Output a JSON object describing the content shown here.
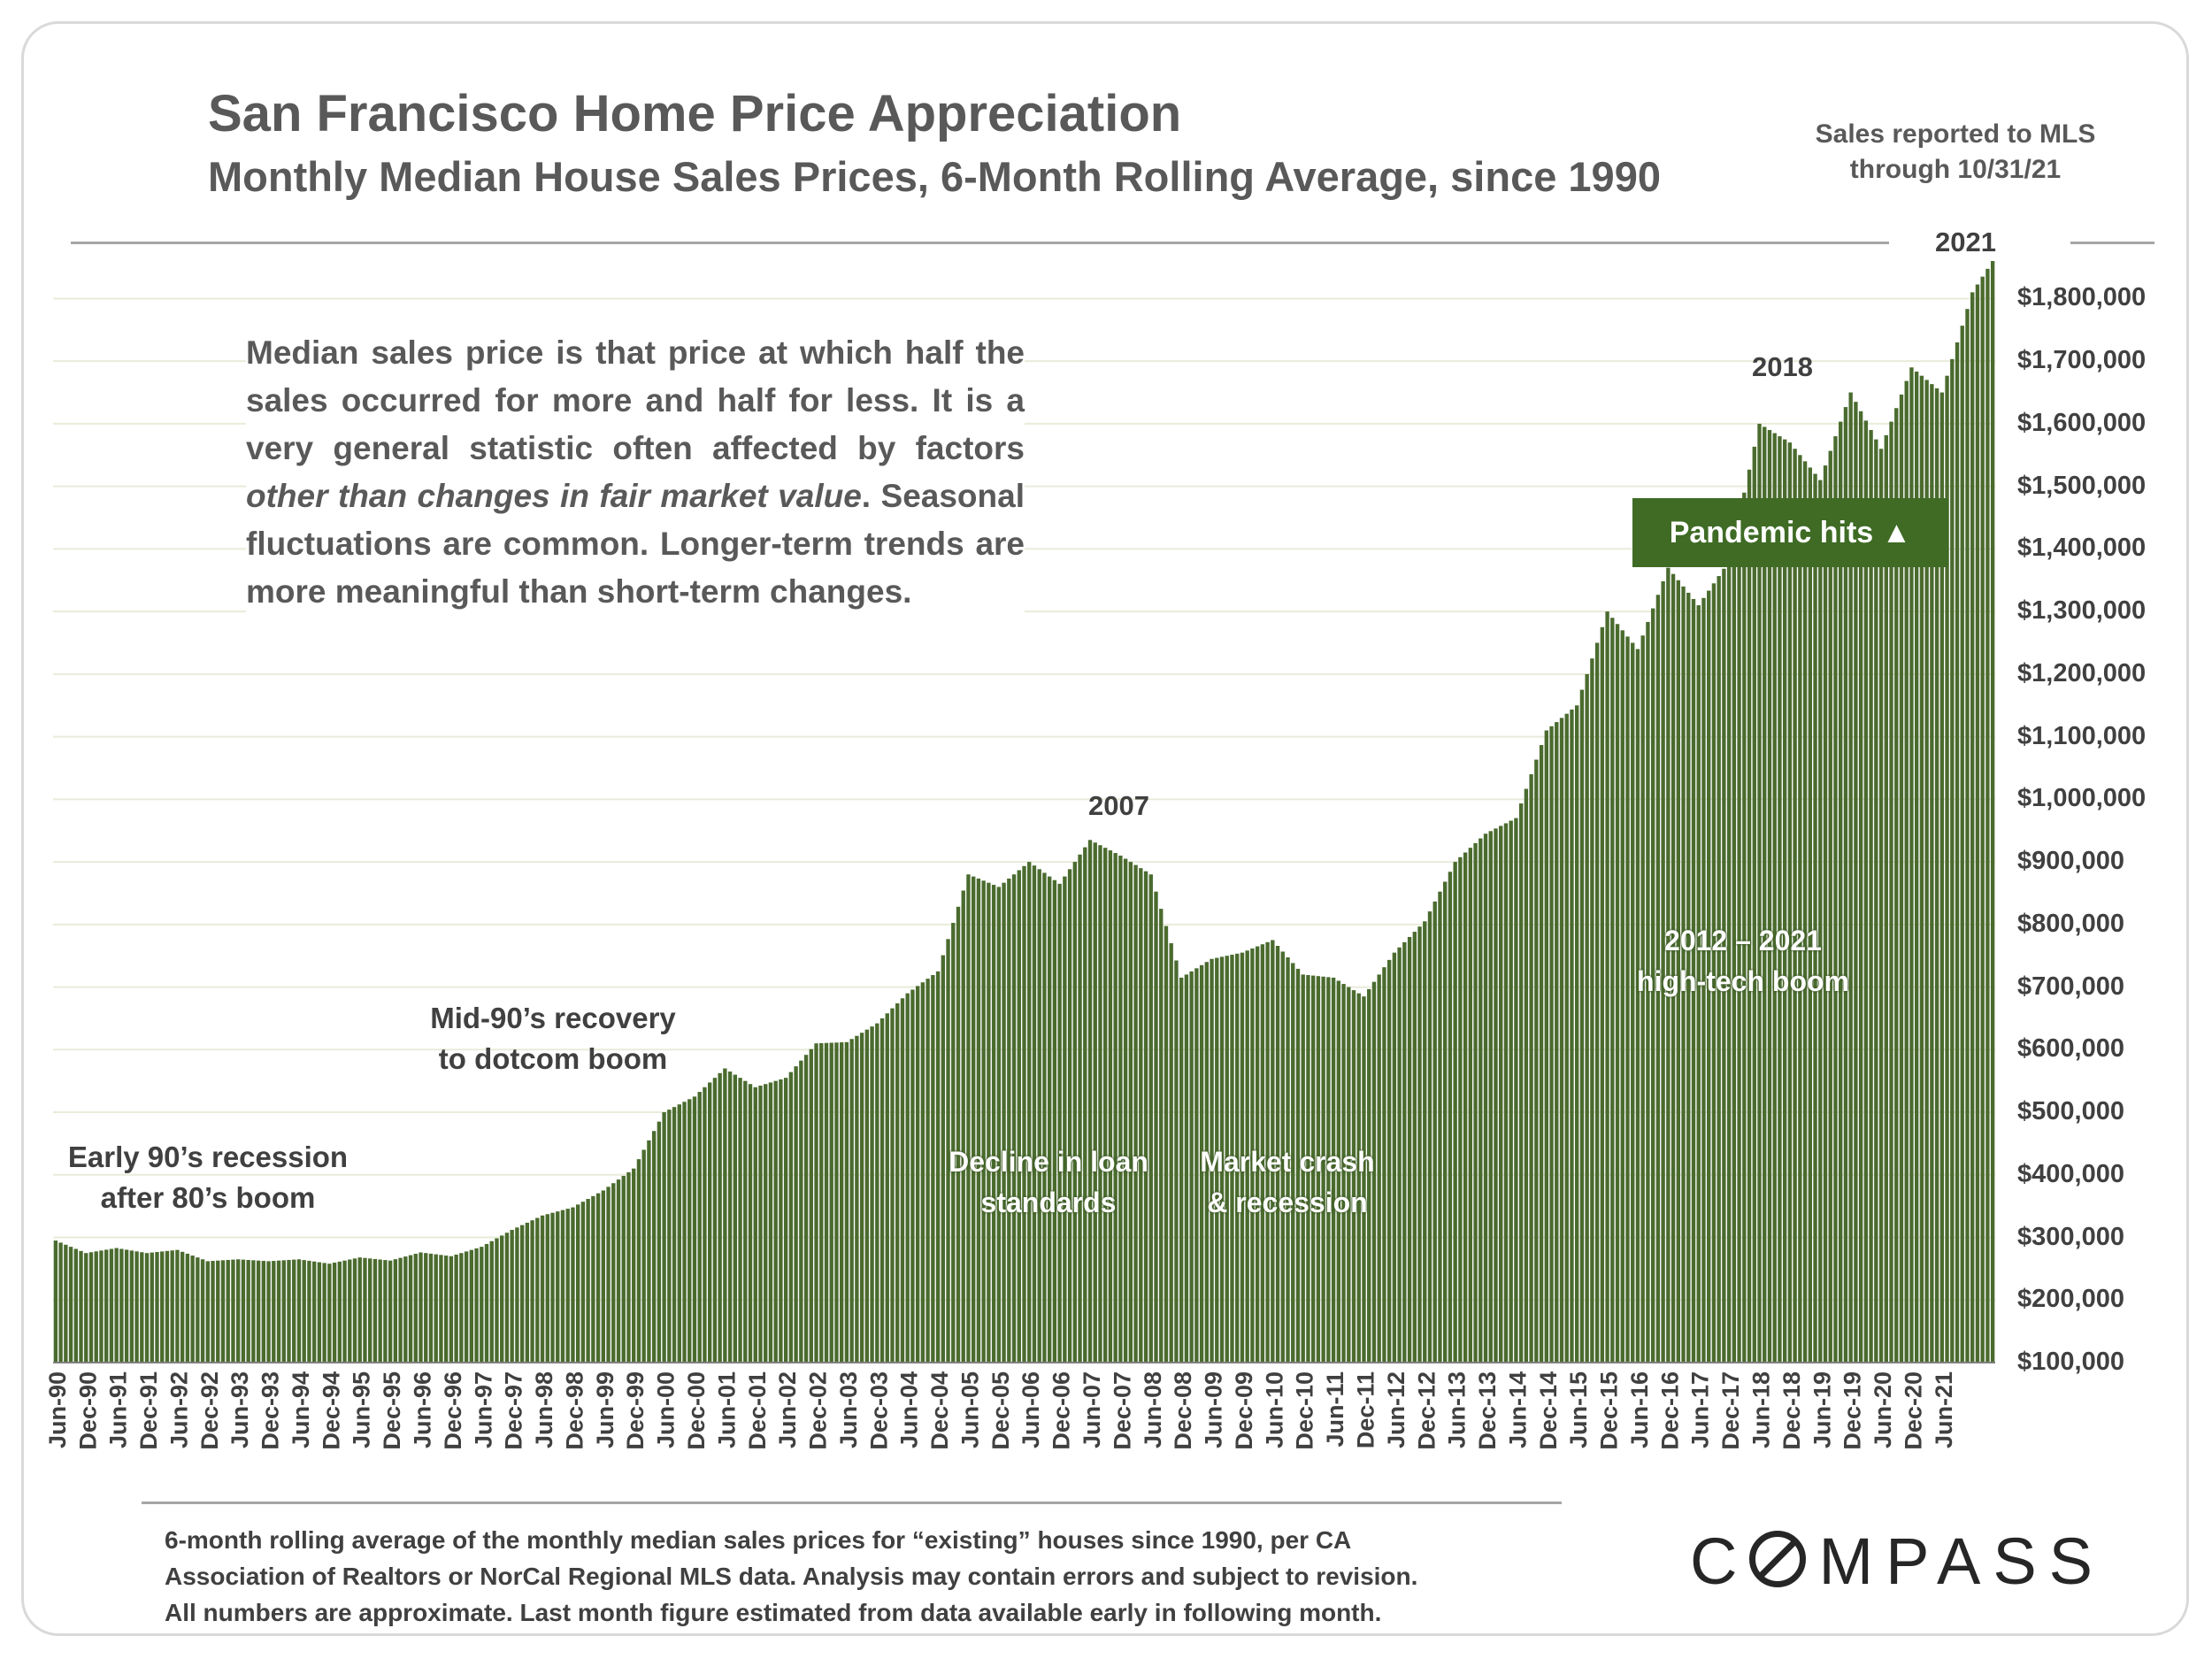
{
  "header": {
    "title": "San Francisco Home Price Appreciation",
    "subtitle": "Monthly Median House Sales Prices, 6-Month Rolling Average, since 1990",
    "source_line1": "Sales reported to MLS",
    "source_line2": "through 10/31/21"
  },
  "note": {
    "part1": "Median sales price is that price at which half the sales occurred for more and half for less. It is a very general statistic often affected by factors",
    "italic1": "other than changes in fair market value",
    "part2": ". Seasonal fluctuations are common. Longer-term trends are more meaningful than short-term changes."
  },
  "annotations": {
    "early90s_line1": "Early 90’s recession",
    "early90s_line2": "after 80’s boom",
    "mid90s_line1": "Mid-90’s recovery",
    "mid90s_line2": "to dotcom boom",
    "decline_line1": "Decline in loan",
    "decline_line2": "standards",
    "crash_line1": "Market crash",
    "crash_line2": "& recession",
    "boom_line1": "2012 – 2021",
    "boom_line2": "high-tech boom",
    "year_2007": "2007",
    "year_2018": "2018",
    "year_2021": "2021",
    "pandemic": "Pandemic hits ▲"
  },
  "footnote": {
    "line1": "6-month rolling average of the monthly median sales prices for “existing” houses since 1990, per CA",
    "line2": "Association of Realtors or NorCal Regional MLS data.  Analysis may contain errors and subject to revision.",
    "line3": "All numbers are approximate. Last month figure estimated from data available early in following month."
  },
  "logo": {
    "text_a": "C",
    "text_b": "MPASS"
  },
  "colors": {
    "bar": "#4a6b2e",
    "bar_edge": "#3d5a26",
    "grid": "#e8ecd9",
    "pandemic_bg": "#3f6b25"
  },
  "chart_data": {
    "type": "bar",
    "title": "San Francisco Home Price Appreciation",
    "subtitle": "Monthly Median House Sales Prices, 6-Month Rolling Average, since 1990",
    "start_month": "Jun-90",
    "end_month": "Oct-21",
    "ylim": [
      100000,
      1860000
    ],
    "y_ticks": [
      100000,
      200000,
      300000,
      400000,
      500000,
      600000,
      700000,
      800000,
      900000,
      1000000,
      1100000,
      1200000,
      1300000,
      1400000,
      1500000,
      1600000,
      1700000,
      1800000
    ],
    "y_tick_labels": [
      "$100,000",
      "$200,000",
      "$300,000",
      "$400,000",
      "$500,000",
      "$600,000",
      "$700,000",
      "$800,000",
      "$900,000",
      "$1,000,000",
      "$1,100,000",
      "$1,200,000",
      "$1,300,000",
      "$1,400,000",
      "$1,500,000",
      "$1,600,000",
      "$1,700,000",
      "$1,800,000"
    ],
    "x_tick_labels": [
      "Jun-90",
      "Dec-90",
      "Jun-91",
      "Dec-91",
      "Jun-92",
      "Dec-92",
      "Jun-93",
      "Dec-93",
      "Jun-94",
      "Dec-94",
      "Jun-95",
      "Dec-95",
      "Jun-96",
      "Dec-96",
      "Jun-97",
      "Dec-97",
      "Jun-98",
      "Dec-98",
      "Jun-99",
      "Dec-99",
      "Jun-00",
      "Dec-00",
      "Jun-01",
      "Dec-01",
      "Jun-02",
      "Dec-02",
      "Jun-03",
      "Dec-03",
      "Jun-04",
      "Dec-04",
      "Jun-05",
      "Dec-05",
      "Jun-06",
      "Dec-06",
      "Jun-07",
      "Dec-07",
      "Jun-08",
      "Dec-08",
      "Jun-09",
      "Dec-09",
      "Jun-10",
      "Dec-10",
      "Jun-11",
      "Dec-11",
      "Jun-12",
      "Dec-12",
      "Jun-13",
      "Dec-13",
      "Jun-14",
      "Dec-14",
      "Jun-15",
      "Dec-15",
      "Jun-16",
      "Dec-16",
      "Jun-17",
      "Dec-17",
      "Jun-18",
      "Dec-18",
      "Jun-19",
      "Dec-19",
      "Jun-20",
      "Dec-20",
      "Jun-21"
    ],
    "anchor_values_semiannual": [
      295000,
      275000,
      283000,
      275000,
      280000,
      262000,
      265000,
      262000,
      265000,
      258000,
      268000,
      263000,
      276000,
      270000,
      285000,
      312000,
      335000,
      348000,
      375000,
      410000,
      500000,
      525000,
      570000,
      540000,
      555000,
      610000,
      612000,
      642000,
      690000,
      725000,
      880000,
      860000,
      900000,
      865000,
      935000,
      910000,
      880000,
      715000,
      745000,
      755000,
      775000,
      720000,
      715000,
      685000,
      755000,
      805000,
      900000,
      945000,
      970000,
      1110000,
      1150000,
      1300000,
      1240000,
      1370000,
      1310000,
      1380000,
      1600000,
      1570000,
      1510000,
      1650000,
      1560000,
      1690000,
      1650000,
      1810000
    ],
    "final_value": 1860000,
    "xlabel": "",
    "ylabel": ""
  }
}
